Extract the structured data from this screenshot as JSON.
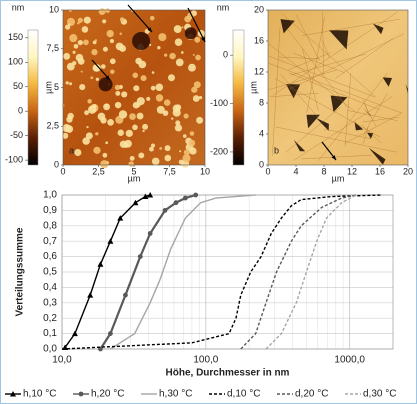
{
  "images": [
    {
      "letter": "a",
      "unit": "µm",
      "xlim": [
        0,
        10
      ],
      "ylim": [
        0,
        10
      ],
      "xticks": [
        0,
        {
          "value": 2.5,
          "label": "2,5"
        },
        5,
        {
          "value": 7.5,
          "label": "7,5"
        },
        10
      ],
      "yticks": [
        0,
        {
          "value": 2.5,
          "label": "2,5"
        },
        5,
        {
          "value": 7.5,
          "label": "7,5"
        },
        10
      ],
      "colorbar": {
        "unit": "nm",
        "clim": [
          -110,
          166
        ],
        "ticks": [
          150,
          100,
          50,
          0,
          -50,
          -100
        ]
      }
    },
    {
      "letter": "b",
      "unit": "µm",
      "xlim": [
        0,
        20
      ],
      "ylim": [
        0,
        20
      ],
      "xticks": [
        0,
        4,
        8,
        12,
        16,
        20
      ],
      "yticks": [
        0,
        4,
        8,
        12,
        16,
        20
      ],
      "colorbar": {
        "unit": "nm",
        "clim": [
          -227,
          52
        ],
        "ticks": [
          0,
          -100,
          -200
        ]
      }
    }
  ],
  "chart_data": {
    "type": "line",
    "log_x": true,
    "grid": true,
    "x_label": "Höhe, Durchmesser in nm",
    "y_label": "Verteilungssumme",
    "xlim": [
      10,
      2000
    ],
    "ylim": [
      0,
      1
    ],
    "xticks": [
      {
        "value": 10,
        "label": "10,0"
      },
      {
        "value": 100,
        "label": "100,0"
      },
      {
        "value": 1000,
        "label": "1000,0"
      }
    ],
    "yticks": [
      {
        "value": 0,
        "label": "0,0"
      },
      {
        "value": 0.1,
        "label": "0,1"
      },
      {
        "value": 0.2,
        "label": "0,2"
      },
      {
        "value": 0.3,
        "label": "0,3"
      },
      {
        "value": 0.4,
        "label": "0,4"
      },
      {
        "value": 0.5,
        "label": "0,5"
      },
      {
        "value": 0.6,
        "label": "0,6"
      },
      {
        "value": 0.7,
        "label": "0,7"
      },
      {
        "value": 0.8,
        "label": "0,8"
      },
      {
        "value": 0.9,
        "label": "0,9"
      },
      {
        "value": 1,
        "label": "1,0"
      }
    ],
    "series": [
      {
        "name": "h,10 °C",
        "color": "#000000",
        "line_style": "solid",
        "marker": "triangle",
        "x": [
          10.5,
          12.3,
          15.7,
          18.5,
          21.7,
          25.4,
          32.4,
          38,
          41
        ],
        "values": [
          0.01,
          0.1,
          0.35,
          0.55,
          0.7,
          0.85,
          0.95,
          0.99,
          1.0
        ]
      },
      {
        "name": "h,20 °C",
        "color": "#595959",
        "line_style": "solid",
        "marker": "circle",
        "x": [
          18.5,
          21.7,
          27.6,
          35,
          41,
          52,
          62,
          72,
          85
        ],
        "values": [
          0.0,
          0.1,
          0.35,
          0.6,
          0.75,
          0.9,
          0.95,
          0.98,
          1.0
        ]
      },
      {
        "name": "h,30 °C",
        "color": "#a6a6a6",
        "line_style": "solid",
        "marker": "none",
        "x": [
          21.7,
          32,
          41,
          48,
          57,
          72,
          92,
          117,
          222
        ],
        "values": [
          0.0,
          0.1,
          0.3,
          0.45,
          0.65,
          0.85,
          0.95,
          0.98,
          1.0
        ]
      },
      {
        "name": "d,10 °C",
        "color": "#000000",
        "line_style": "dashed",
        "marker": "none",
        "x": [
          10,
          80,
          145,
          162,
          175,
          205,
          242,
          285,
          335,
          393,
          460,
          750,
          1650
        ],
        "values": [
          0.0,
          0.04,
          0.1,
          0.2,
          0.35,
          0.5,
          0.6,
          0.75,
          0.85,
          0.93,
          0.97,
          0.99,
          1.0
        ]
      },
      {
        "name": "d,20 °C",
        "color": "#595959",
        "line_style": "dashed",
        "marker": "none",
        "x": [
          175,
          222,
          262,
          310,
          393,
          460,
          640,
          880,
          1110
        ],
        "values": [
          0.0,
          0.1,
          0.3,
          0.5,
          0.7,
          0.8,
          0.92,
          0.98,
          1.0
        ]
      },
      {
        "name": "d,30 °C",
        "color": "#a6a6a6",
        "line_style": "dashed",
        "marker": "none",
        "x": [
          262,
          335,
          425,
          500,
          590,
          690,
          880,
          1110
        ],
        "values": [
          0.0,
          0.1,
          0.3,
          0.5,
          0.7,
          0.85,
          0.95,
          1.0
        ]
      }
    ]
  }
}
